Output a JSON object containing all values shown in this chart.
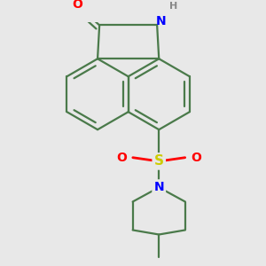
{
  "bg_color": "#e8e8e8",
  "bond_color": "#4a7a4a",
  "bond_width": 1.6,
  "atom_colors": {
    "O": "#ff0000",
    "N": "#0000ff",
    "S": "#cccc00",
    "H": "#888888",
    "C": "#4a7a4a"
  },
  "font_size": 9,
  "xlim": [
    -1.1,
    1.1
  ],
  "ylim": [
    -1.55,
    1.05
  ]
}
